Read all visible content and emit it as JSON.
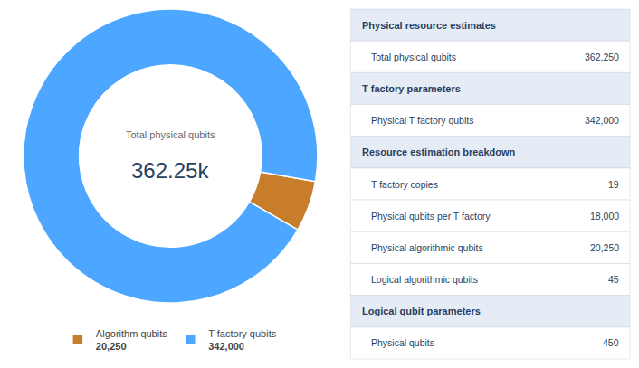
{
  "chart_data": [
    {
      "type": "pie",
      "categories": [
        "Algorithm qubits",
        "T factory qubits"
      ],
      "values": [
        20250,
        342000
      ],
      "value_labels": [
        "20,250",
        "342,000"
      ],
      "colors": [
        "#c87d2a",
        "#4da6ff"
      ],
      "annotations": [
        "Total physical qubits",
        "362.25k"
      ]
    },
    {
      "type": "table",
      "categories": [
        "Physical resource estimates",
        "Total physical qubits",
        "T factory parameters",
        "Physical T factory qubits",
        "Resource estimation breakdown",
        "T factory copies",
        "Physical qubits per T factory",
        "Physical algorithmic qubits",
        "Logical algorithmic qubits",
        "Logical qubit parameters",
        "Physical qubits"
      ],
      "values": [
        null,
        362250,
        null,
        342000,
        null,
        19,
        18000,
        20250,
        45,
        null,
        450
      ],
      "value_labels": [
        null,
        "362,250",
        null,
        "342,000",
        null,
        "19",
        "18,000",
        "20,250",
        "45",
        null,
        "450"
      ]
    }
  ]
}
